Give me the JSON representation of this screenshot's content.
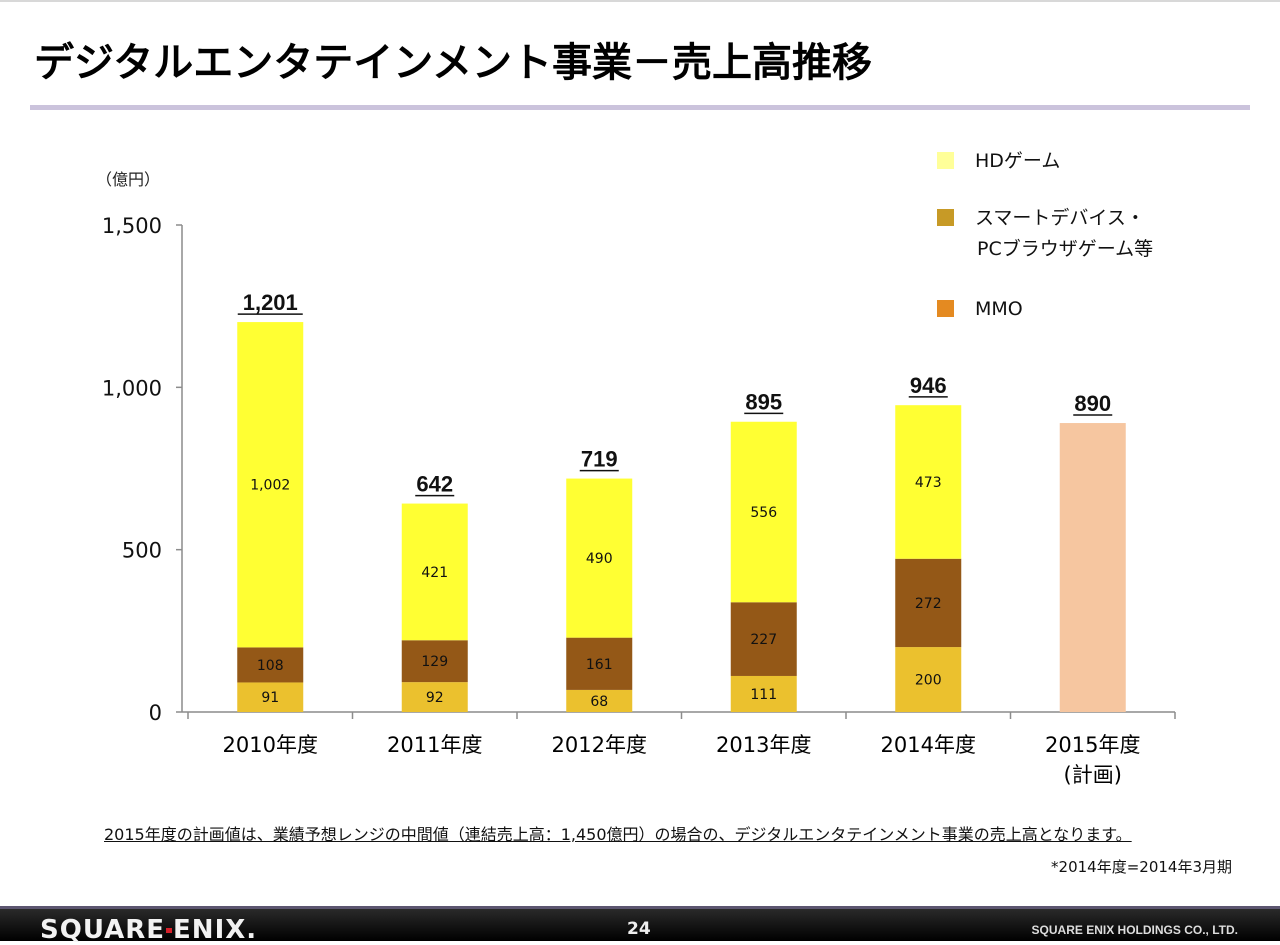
{
  "title": "デジタルエンタテインメント事業－売上高推移",
  "chart_data": {
    "type": "bar",
    "stacked": true,
    "title": "デジタルエンタテインメント事業－売上高推移",
    "ylabel": "（億円）",
    "xlabel": "",
    "ylim": [
      0,
      1500
    ],
    "yticks": [
      0,
      500,
      1000,
      1500
    ],
    "ytick_labels": [
      "0",
      "500",
      "1,000",
      "1,500"
    ],
    "categories": [
      "2010年度",
      "2011年度",
      "2012年度",
      "2013年度",
      "2014年度",
      "2015年度\n(計画)"
    ],
    "series": [
      {
        "name": "MMO",
        "color": "#EBC12E",
        "values": [
          91,
          92,
          68,
          111,
          200,
          null
        ]
      },
      {
        "name": "スマートデバイス・PCブラウザゲーム等",
        "color": "#945817",
        "values": [
          108,
          129,
          161,
          227,
          272,
          null
        ]
      },
      {
        "name": "HDゲーム",
        "color": "#FFFF33",
        "values": [
          1002,
          421,
          490,
          556,
          473,
          null
        ]
      },
      {
        "name": "計画",
        "color": "#F6C6A0",
        "values": [
          null,
          null,
          null,
          null,
          null,
          890
        ]
      }
    ],
    "segment_labels": [
      [
        "91",
        "108",
        "1,002"
      ],
      [
        "92",
        "129",
        "421"
      ],
      [
        "68",
        "161",
        "490"
      ],
      [
        "111",
        "227",
        "556"
      ],
      [
        "200",
        "272",
        "473"
      ],
      []
    ],
    "totals": [
      1201,
      642,
      719,
      895,
      946,
      890
    ],
    "total_labels": [
      "1,201",
      "642",
      "719",
      "895",
      "946",
      "890"
    ],
    "legend": {
      "placement": "top-right",
      "entries": [
        {
          "label": "HDゲーム",
          "color": "#FFFF99"
        },
        {
          "label_lines": [
            "スマートデバイス・",
            "PCブラウザゲーム等"
          ],
          "color": "#C79A26"
        },
        {
          "label": "MMO",
          "color": "#E48A21"
        }
      ]
    },
    "grid": false
  },
  "footnote": "2015年度の計画値は、業績予想レンジの中間値（連結売上高：1,450億円）の場合の、デジタルエンタテインメント事業の売上高となります。",
  "asterisk_note": "*2014年度=2014年3月期",
  "footer": {
    "logo_parts": [
      "SQUARE",
      "ENIX."
    ],
    "page_number": "24",
    "company": "SQUARE ENIX HOLDINGS CO., LTD."
  }
}
